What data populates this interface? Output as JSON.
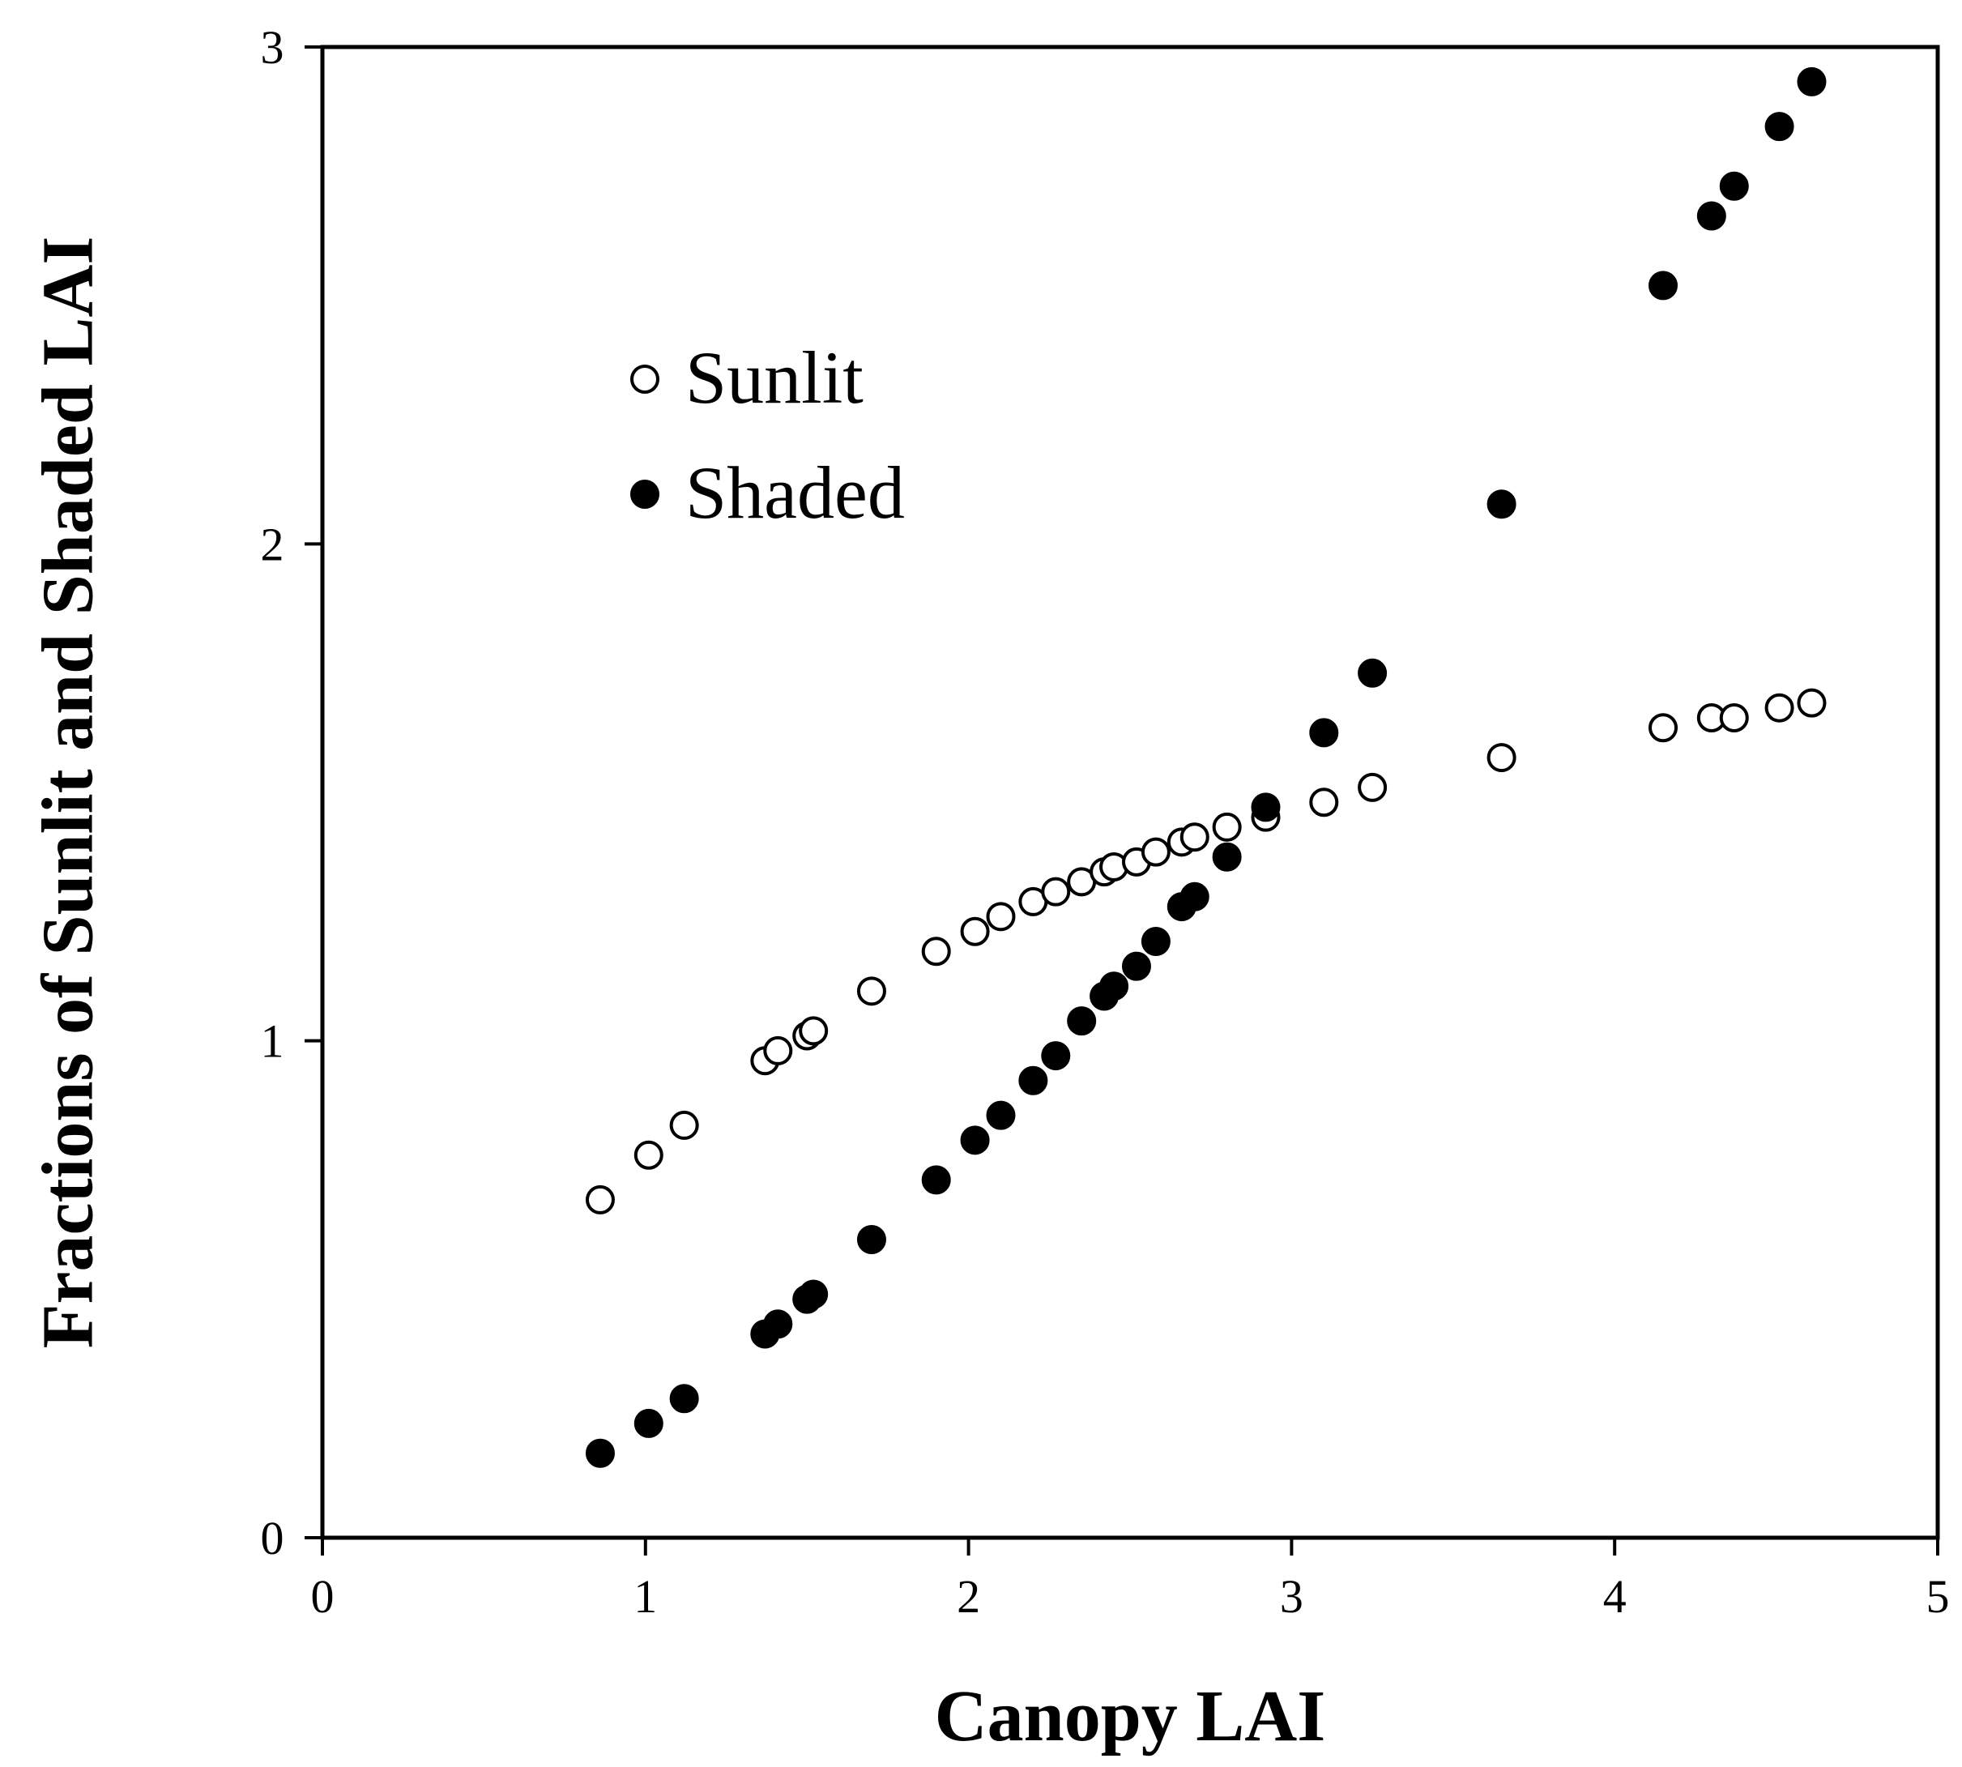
{
  "chart_data": {
    "type": "scatter",
    "title": "",
    "xlabel": "Canopy LAI",
    "ylabel": "Fractions of Sunlit and Shaded LAI",
    "xlim": [
      0,
      5
    ],
    "ylim": [
      0,
      3
    ],
    "xticks": [
      0,
      1,
      2,
      3,
      4,
      5
    ],
    "yticks": [
      0,
      1,
      2,
      3
    ],
    "xtick_labels": [
      "0",
      "1",
      "2",
      "3",
      "4",
      "5"
    ],
    "ytick_labels": [
      "0",
      "1",
      "2",
      "3"
    ],
    "legend_position": "upper-left",
    "grid": false,
    "series": [
      {
        "name": "Sunlit",
        "marker": "open-circle",
        "x": [
          0.86,
          1.01,
          1.12,
          1.37,
          1.41,
          1.5,
          1.52,
          1.7,
          1.9,
          2.02,
          2.1,
          2.2,
          2.27,
          2.35,
          2.42,
          2.45,
          2.52,
          2.58,
          2.66,
          2.7,
          2.8,
          2.92,
          3.1,
          3.25,
          3.65,
          4.15,
          4.3,
          4.37,
          4.51,
          4.61
        ],
        "y": [
          0.68,
          0.77,
          0.83,
          0.96,
          0.98,
          1.01,
          1.02,
          1.1,
          1.18,
          1.22,
          1.25,
          1.28,
          1.3,
          1.32,
          1.34,
          1.35,
          1.36,
          1.38,
          1.4,
          1.41,
          1.43,
          1.45,
          1.48,
          1.51,
          1.57,
          1.63,
          1.65,
          1.65,
          1.67,
          1.68
        ]
      },
      {
        "name": "Shaded",
        "marker": "filled-circle",
        "x": [
          0.86,
          1.01,
          1.12,
          1.37,
          1.41,
          1.5,
          1.52,
          1.7,
          1.9,
          2.02,
          2.1,
          2.2,
          2.27,
          2.35,
          2.42,
          2.45,
          2.52,
          2.58,
          2.66,
          2.7,
          2.8,
          2.92,
          3.1,
          3.25,
          3.65,
          4.15,
          4.3,
          4.37,
          4.51,
          4.61
        ],
        "y": [
          0.17,
          0.23,
          0.28,
          0.41,
          0.43,
          0.48,
          0.49,
          0.6,
          0.72,
          0.8,
          0.85,
          0.92,
          0.97,
          1.04,
          1.09,
          1.11,
          1.15,
          1.2,
          1.27,
          1.29,
          1.37,
          1.47,
          1.62,
          1.74,
          2.08,
          2.52,
          2.66,
          2.72,
          2.84,
          2.93
        ]
      }
    ]
  }
}
